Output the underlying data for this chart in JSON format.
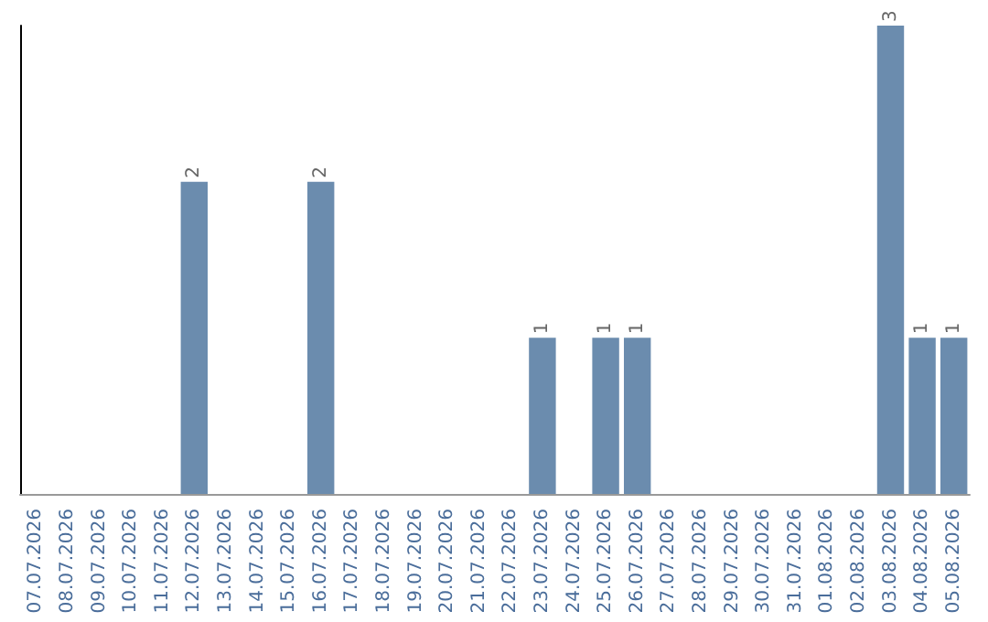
{
  "chart_data": {
    "type": "bar",
    "categories": [
      "07.07.2026",
      "08.07.2026",
      "09.07.2026",
      "10.07.2026",
      "11.07.2026",
      "12.07.2026",
      "13.07.2026",
      "14.07.2026",
      "15.07.2026",
      "16.07.2026",
      "17.07.2026",
      "18.07.2026",
      "19.07.2026",
      "20.07.2026",
      "21.07.2026",
      "22.07.2026",
      "23.07.2026",
      "24.07.2026",
      "25.07.2026",
      "26.07.2026",
      "27.07.2026",
      "28.07.2026",
      "29.07.2026",
      "30.07.2026",
      "31.07.2026",
      "01.08.2026",
      "02.08.2026",
      "03.08.2026",
      "04.08.2026",
      "05.08.2026"
    ],
    "values": [
      0,
      0,
      0,
      0,
      0,
      2,
      0,
      0,
      0,
      2,
      0,
      0,
      0,
      0,
      0,
      0,
      1,
      0,
      1,
      1,
      0,
      0,
      0,
      0,
      0,
      0,
      0,
      3,
      1,
      1
    ],
    "value_labels": [
      null,
      null,
      null,
      null,
      null,
      "2",
      null,
      null,
      null,
      "2",
      null,
      null,
      null,
      null,
      null,
      null,
      "1",
      null,
      "1",
      "1",
      null,
      null,
      null,
      null,
      null,
      null,
      null,
      "3",
      "1",
      "1"
    ],
    "color": "#6b8cae",
    "grid": false,
    "tick_labels": "x"
  }
}
